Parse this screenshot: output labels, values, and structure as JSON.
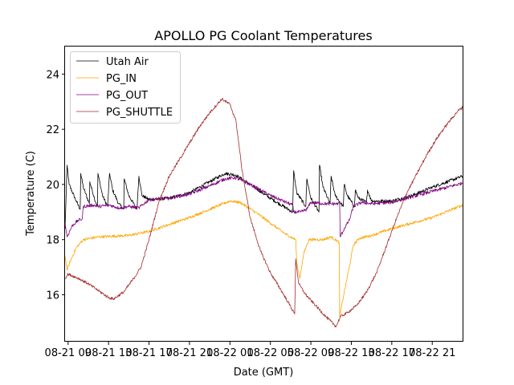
{
  "chart_data": {
    "type": "line",
    "title": "APOLLO PG Coolant Temperatures",
    "xlabel": "Date (GMT)",
    "ylabel": "Temperature (C)",
    "x_units": "hours since 08-21 09:00 GMT",
    "xlim": [
      -0.3,
      39.0
    ],
    "ylim": [
      14.3,
      25.0
    ],
    "x_ticks": [
      {
        "value": 0,
        "label": "08-21 09"
      },
      {
        "value": 4,
        "label": "08-21 13"
      },
      {
        "value": 8,
        "label": "08-21 17"
      },
      {
        "value": 12,
        "label": "08-21 21"
      },
      {
        "value": 16,
        "label": "08-22 01"
      },
      {
        "value": 20,
        "label": "08-22 05"
      },
      {
        "value": 24,
        "label": "08-22 09"
      },
      {
        "value": 28,
        "label": "08-22 13"
      },
      {
        "value": 32,
        "label": "08-22 17"
      },
      {
        "value": 36,
        "label": "08-22 21"
      }
    ],
    "y_ticks": [
      {
        "value": 16,
        "label": "16"
      },
      {
        "value": 18,
        "label": "18"
      },
      {
        "value": 20,
        "label": "20"
      },
      {
        "value": 22,
        "label": "22"
      },
      {
        "value": 24,
        "label": "24"
      }
    ],
    "grid": false,
    "legend": {
      "position": "top-left"
    },
    "series": [
      {
        "name": "Utah Air",
        "color": "#000000",
        "noise": 0.06,
        "points": [
          [
            -0.3,
            18.4
          ],
          [
            -0.1,
            20.7
          ],
          [
            0.1,
            20.0
          ],
          [
            0.8,
            19.4
          ],
          [
            1.2,
            19.1
          ],
          [
            1.25,
            20.4
          ],
          [
            1.5,
            19.9
          ],
          [
            2.1,
            19.3
          ],
          [
            2.15,
            20.1
          ],
          [
            2.6,
            19.5
          ],
          [
            2.9,
            19.2
          ],
          [
            2.95,
            20.4
          ],
          [
            3.4,
            19.6
          ],
          [
            3.9,
            19.2
          ],
          [
            4.1,
            20.4
          ],
          [
            4.4,
            19.8
          ],
          [
            5.0,
            19.3
          ],
          [
            5.5,
            19.1
          ],
          [
            5.55,
            20.2
          ],
          [
            6.0,
            19.6
          ],
          [
            6.8,
            19.1
          ],
          [
            7.0,
            20.3
          ],
          [
            7.3,
            19.6
          ],
          [
            8,
            19.45
          ],
          [
            10,
            19.5
          ],
          [
            12,
            19.7
          ],
          [
            14,
            20.1
          ],
          [
            15.5,
            20.4
          ],
          [
            16.5,
            20.35
          ],
          [
            18,
            20.0
          ],
          [
            20,
            19.5
          ],
          [
            22.2,
            19.0
          ],
          [
            22.3,
            20.5
          ],
          [
            22.6,
            19.7
          ],
          [
            23.5,
            19.2
          ],
          [
            23.6,
            20.2
          ],
          [
            24,
            19.5
          ],
          [
            24.8,
            19.0
          ],
          [
            24.85,
            20.7
          ],
          [
            25.2,
            19.9
          ],
          [
            25.9,
            19.3
          ],
          [
            26.0,
            20.3
          ],
          [
            26.4,
            19.6
          ],
          [
            27.2,
            19.2
          ],
          [
            27.3,
            20.0
          ],
          [
            27.6,
            19.6
          ],
          [
            28.3,
            19.2
          ],
          [
            28.4,
            19.8
          ],
          [
            28.7,
            19.5
          ],
          [
            29.5,
            19.35
          ],
          [
            29.6,
            19.8
          ],
          [
            30,
            19.4
          ],
          [
            32,
            19.4
          ],
          [
            34,
            19.6
          ],
          [
            36,
            19.9
          ],
          [
            39.0,
            20.3
          ]
        ]
      },
      {
        "name": "PG_IN",
        "color": "#ffa500",
        "noise": 0.05,
        "points": [
          [
            -0.3,
            17.4
          ],
          [
            -0.1,
            16.9
          ],
          [
            0.2,
            17.2
          ],
          [
            0.8,
            17.7
          ],
          [
            1.5,
            18.0
          ],
          [
            3,
            18.1
          ],
          [
            6,
            18.15
          ],
          [
            8,
            18.3
          ],
          [
            10,
            18.55
          ],
          [
            12,
            18.8
          ],
          [
            14,
            19.1
          ],
          [
            16,
            19.4
          ],
          [
            17,
            19.35
          ],
          [
            18.5,
            19.0
          ],
          [
            20,
            18.6
          ],
          [
            21.5,
            18.2
          ],
          [
            22.5,
            18.0
          ],
          [
            22.6,
            17.2
          ],
          [
            22.9,
            16.6
          ],
          [
            23.3,
            17.5
          ],
          [
            23.8,
            18.0
          ],
          [
            24.5,
            18.0
          ],
          [
            25.2,
            18.0
          ],
          [
            26.0,
            18.1
          ],
          [
            26.8,
            17.9
          ],
          [
            26.85,
            15.2
          ],
          [
            27.3,
            16.1
          ],
          [
            27.8,
            17.0
          ],
          [
            28.2,
            17.8
          ],
          [
            28.8,
            18.05
          ],
          [
            30,
            18.15
          ],
          [
            32,
            18.4
          ],
          [
            34,
            18.6
          ],
          [
            36,
            18.8
          ],
          [
            39.0,
            19.25
          ]
        ]
      },
      {
        "name": "PG_OUT",
        "color": "#800080",
        "noise": 0.06,
        "points": [
          [
            -0.3,
            18.6
          ],
          [
            -0.1,
            18.1
          ],
          [
            0.4,
            18.5
          ],
          [
            1.0,
            18.7
          ],
          [
            1.4,
            18.75
          ],
          [
            1.5,
            19.2
          ],
          [
            2.5,
            19.25
          ],
          [
            3,
            19.2
          ],
          [
            4.1,
            19.25
          ],
          [
            5,
            19.15
          ],
          [
            6,
            19.2
          ],
          [
            7,
            19.15
          ],
          [
            8,
            19.45
          ],
          [
            10,
            19.5
          ],
          [
            12,
            19.65
          ],
          [
            14,
            19.95
          ],
          [
            15.5,
            20.2
          ],
          [
            16.5,
            20.25
          ],
          [
            18,
            20.0
          ],
          [
            20,
            19.6
          ],
          [
            22.2,
            19.25
          ],
          [
            22.3,
            19.0
          ],
          [
            23.0,
            19.0
          ],
          [
            23.6,
            19.1
          ],
          [
            24,
            19.35
          ],
          [
            25.5,
            19.3
          ],
          [
            26.3,
            19.3
          ],
          [
            26.85,
            19.3
          ],
          [
            26.9,
            18.1
          ],
          [
            27.3,
            18.4
          ],
          [
            27.8,
            18.7
          ],
          [
            28.2,
            19.2
          ],
          [
            29,
            19.35
          ],
          [
            30,
            19.3
          ],
          [
            32,
            19.35
          ],
          [
            34,
            19.55
          ],
          [
            36,
            19.75
          ],
          [
            39.0,
            20.05
          ]
        ]
      },
      {
        "name": "PG_SHUTTLE",
        "color": "#a52a2a",
        "noise": 0.05,
        "points": [
          [
            -0.3,
            16.6
          ],
          [
            0,
            16.75
          ],
          [
            1,
            16.6
          ],
          [
            2,
            16.4
          ],
          [
            3,
            16.15
          ],
          [
            4,
            15.9
          ],
          [
            4.5,
            15.85
          ],
          [
            5.5,
            16.1
          ],
          [
            6.5,
            16.6
          ],
          [
            7.2,
            17.0
          ],
          [
            8.0,
            18.0
          ],
          [
            9,
            19.4
          ],
          [
            10,
            20.3
          ],
          [
            11,
            20.9
          ],
          [
            12,
            21.5
          ],
          [
            13,
            22.1
          ],
          [
            14,
            22.6
          ],
          [
            15.2,
            23.1
          ],
          [
            16,
            22.9
          ],
          [
            16.6,
            22.3
          ],
          [
            17.2,
            20.5
          ],
          [
            18.0,
            18.8
          ],
          [
            19,
            17.6
          ],
          [
            20,
            16.8
          ],
          [
            21,
            16.2
          ],
          [
            21.8,
            15.7
          ],
          [
            22.4,
            15.3
          ],
          [
            22.5,
            17.3
          ],
          [
            22.8,
            16.4
          ],
          [
            23.5,
            16.0
          ],
          [
            24.5,
            15.6
          ],
          [
            25.5,
            15.2
          ],
          [
            26.5,
            14.85
          ],
          [
            26.9,
            15.2
          ],
          [
            27.6,
            15.35
          ],
          [
            28.5,
            15.6
          ],
          [
            29.5,
            16.1
          ],
          [
            30.5,
            16.8
          ],
          [
            31.5,
            17.8
          ],
          [
            32.5,
            18.8
          ],
          [
            33.5,
            19.7
          ],
          [
            34.5,
            20.4
          ],
          [
            35.5,
            21.1
          ],
          [
            36.5,
            21.7
          ],
          [
            37.5,
            22.2
          ],
          [
            38.5,
            22.65
          ],
          [
            39.0,
            22.8
          ]
        ]
      }
    ]
  }
}
